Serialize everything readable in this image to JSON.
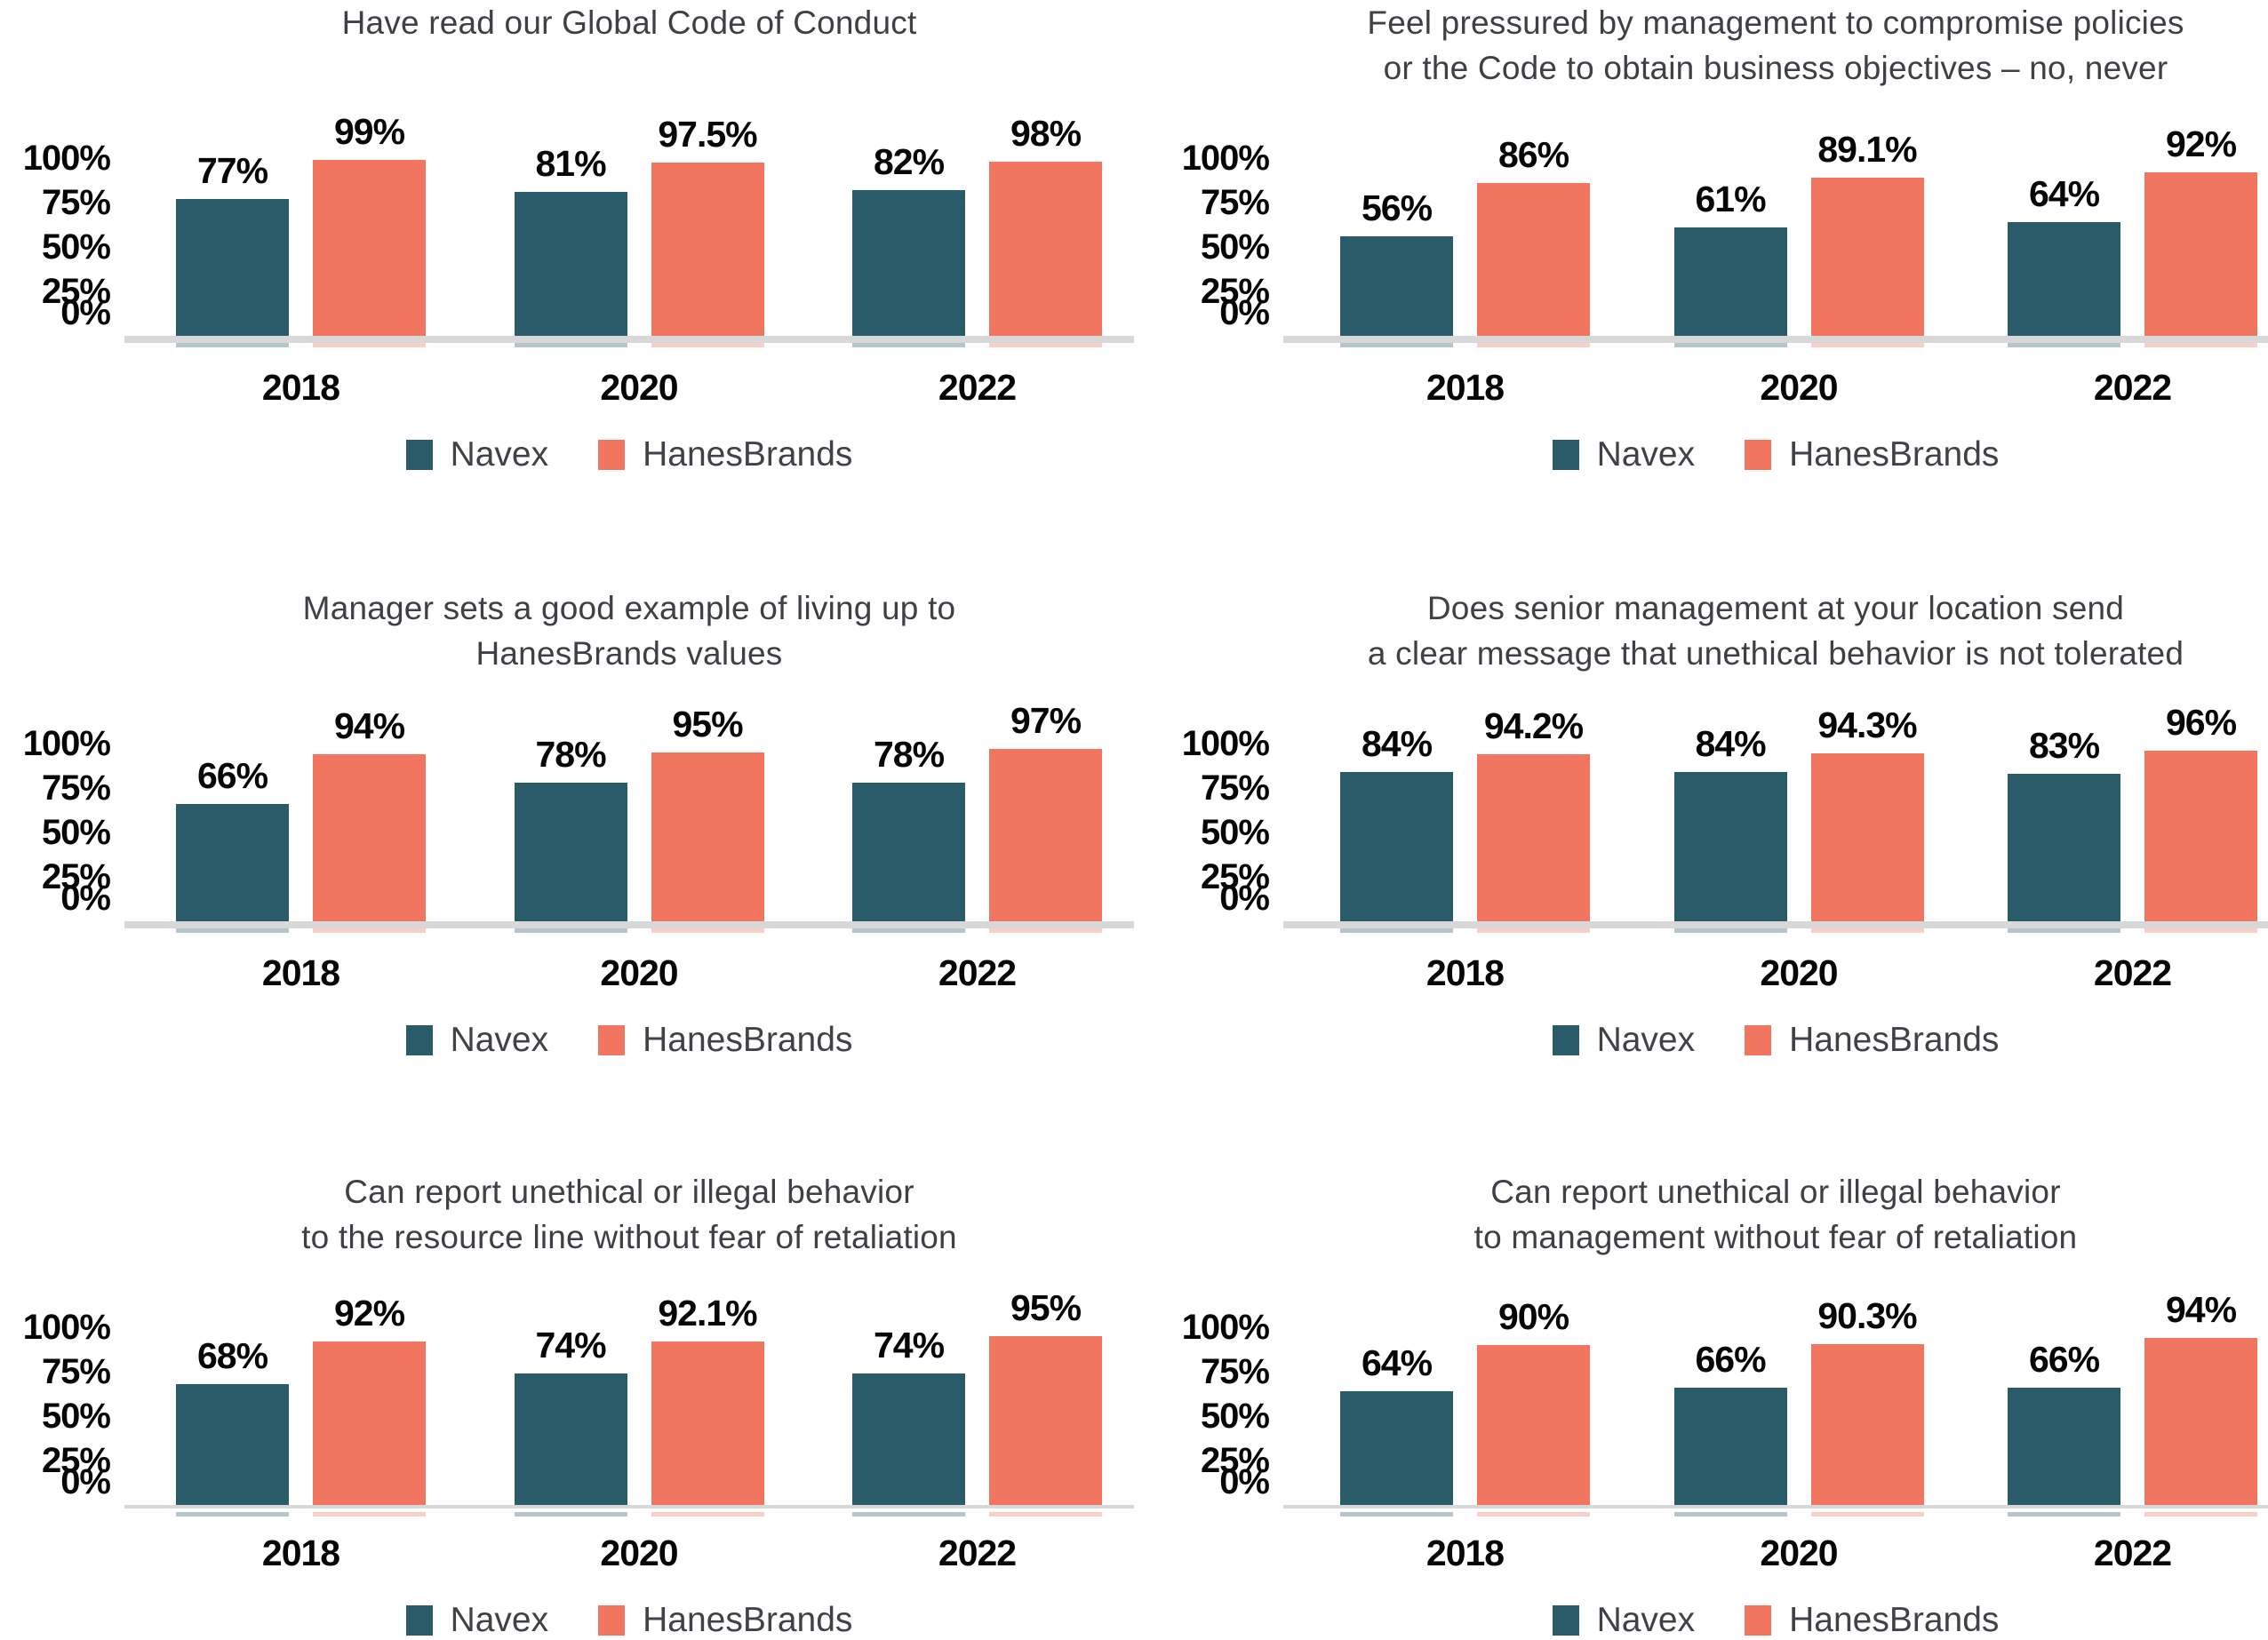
{
  "page": {
    "background": "#FFFFFF"
  },
  "colors": {
    "navex": "#295B69",
    "hanesbrands": "#F2765F",
    "baseline": "#D8D8D8",
    "title_text": "#3F4045",
    "label_text": "#060608",
    "legend_text": "#414247"
  },
  "legend": {
    "items": [
      {
        "label": "Navex",
        "color_key": "navex"
      },
      {
        "label": "HanesBrands",
        "color_key": "hanesbrands"
      }
    ],
    "position": "bottom-center"
  },
  "y_axis": {
    "ticks": [
      "100%",
      "75%",
      "50%",
      "25%",
      "0%"
    ],
    "tick_values": [
      100,
      75,
      50,
      25,
      0
    ],
    "max": 100
  },
  "chart_data": [
    {
      "type": "bar",
      "title": "Have read our Global Code of Conduct",
      "title_lines": [
        "Have read our Global Code of Conduct"
      ],
      "categories": [
        "2018",
        "2020",
        "2022"
      ],
      "series": [
        {
          "name": "Navex",
          "values": [
            77,
            81,
            82
          ],
          "labels": [
            "77%",
            "81%",
            "82%"
          ]
        },
        {
          "name": "HanesBrands",
          "values": [
            99,
            97.5,
            98
          ],
          "labels": [
            "99%",
            "97.5%",
            "98%"
          ]
        }
      ],
      "xlabel": "",
      "ylabel": "",
      "ylim": [
        0,
        100
      ],
      "grid": false
    },
    {
      "type": "bar",
      "title": "Feel pressured by management to compromise policies or the Code to obtain business objectives – no, never",
      "title_lines": [
        "Feel pressured by management to compromise policies",
        "or the Code to obtain business objectives – no, never"
      ],
      "categories": [
        "2018",
        "2020",
        "2022"
      ],
      "series": [
        {
          "name": "Navex",
          "values": [
            56,
            61,
            64
          ],
          "labels": [
            "56%",
            "61%",
            "64%"
          ]
        },
        {
          "name": "HanesBrands",
          "values": [
            86,
            89.1,
            92
          ],
          "labels": [
            "86%",
            "89.1%",
            "92%"
          ]
        }
      ],
      "xlabel": "",
      "ylabel": "",
      "ylim": [
        0,
        100
      ],
      "grid": false
    },
    {
      "type": "bar",
      "title": "Manager sets a good example of living up to HanesBrands values",
      "title_lines": [
        "Manager sets a good example of living up to",
        "HanesBrands values"
      ],
      "categories": [
        "2018",
        "2020",
        "2022"
      ],
      "series": [
        {
          "name": "Navex",
          "values": [
            66,
            78,
            78
          ],
          "labels": [
            "66%",
            "78%",
            "78%"
          ]
        },
        {
          "name": "HanesBrands",
          "values": [
            94,
            95,
            97
          ],
          "labels": [
            "94%",
            "95%",
            "97%"
          ]
        }
      ],
      "xlabel": "",
      "ylabel": "",
      "ylim": [
        0,
        100
      ],
      "grid": false
    },
    {
      "type": "bar",
      "title": "Does senior management at your location send a clear message that unethical behavior is not tolerated",
      "title_lines": [
        "Does senior management at your location send",
        "a clear message that unethical behavior is not tolerated"
      ],
      "categories": [
        "2018",
        "2020",
        "2022"
      ],
      "series": [
        {
          "name": "Navex",
          "values": [
            84,
            84,
            83
          ],
          "labels": [
            "84%",
            "84%",
            "83%"
          ]
        },
        {
          "name": "HanesBrands",
          "values": [
            94.2,
            94.3,
            96
          ],
          "labels": [
            "94.2%",
            "94.3%",
            "96%"
          ]
        }
      ],
      "xlabel": "",
      "ylabel": "",
      "ylim": [
        0,
        100
      ],
      "grid": false
    },
    {
      "type": "bar",
      "title": "Can report unethical or illegal behavior to the resource line without fear of retaliation",
      "title_lines": [
        "Can report unethical or illegal behavior",
        "to the resource line without fear of retaliation"
      ],
      "categories": [
        "2018",
        "2020",
        "2022"
      ],
      "series": [
        {
          "name": "Navex",
          "values": [
            68,
            74,
            74
          ],
          "labels": [
            "68%",
            "74%",
            "74%"
          ]
        },
        {
          "name": "HanesBrands",
          "values": [
            92,
            92.1,
            95
          ],
          "labels": [
            "92%",
            "92.1%",
            "95%"
          ]
        }
      ],
      "xlabel": "",
      "ylabel": "",
      "ylim": [
        0,
        100
      ],
      "grid": false
    },
    {
      "type": "bar",
      "title": "Can report unethical or illegal behavior to management without fear of retaliation",
      "title_lines": [
        "Can report unethical or illegal behavior",
        "to management without fear of retaliation"
      ],
      "categories": [
        "2018",
        "2020",
        "2022"
      ],
      "series": [
        {
          "name": "Navex",
          "values": [
            64,
            66,
            66
          ],
          "labels": [
            "64%",
            "66%",
            "66%"
          ]
        },
        {
          "name": "HanesBrands",
          "values": [
            90,
            90.3,
            94
          ],
          "labels": [
            "90%",
            "90.3%",
            "94%"
          ]
        }
      ],
      "xlabel": "",
      "ylabel": "",
      "ylim": [
        0,
        100
      ],
      "grid": false
    }
  ]
}
